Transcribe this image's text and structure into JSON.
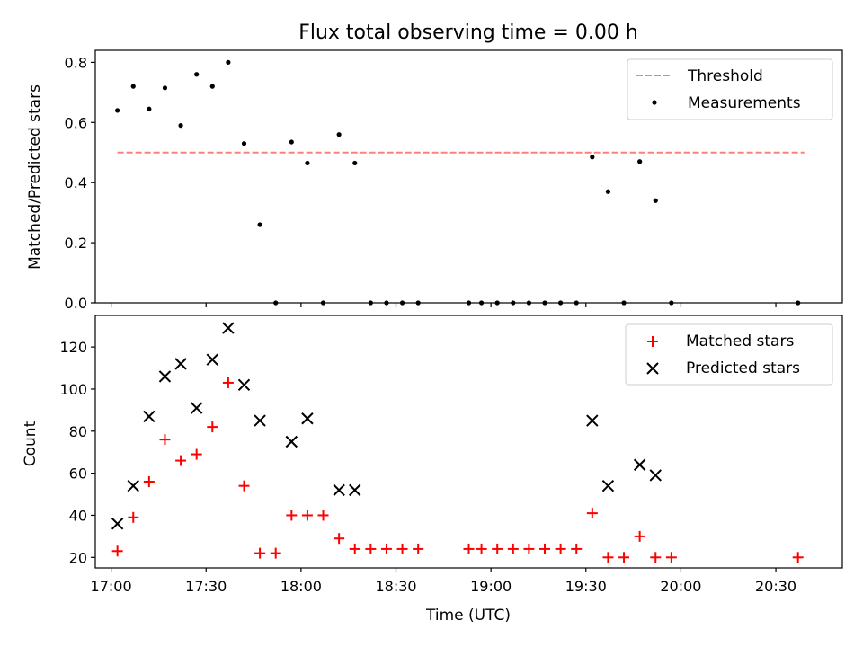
{
  "chart_data": [
    {
      "type": "scatter",
      "title": "Flux total observing time = 0.00 h",
      "xlabel": "",
      "ylabel": "Matched/Predicted stars",
      "ylim": [
        0.0,
        0.84
      ],
      "yticks": [
        "0.0",
        "0.2",
        "0.4",
        "0.6",
        "0.8"
      ],
      "xlim": [
        "16:55",
        "20:51"
      ],
      "legend_position": "top-right",
      "threshold": {
        "name": "Threshold",
        "value": 0.5,
        "x_range": [
          "17:02",
          "20:39"
        ],
        "color": "#ff7f7f",
        "style": "dashed"
      },
      "series": [
        {
          "name": "Measurements",
          "color": "#000000",
          "marker": "dot",
          "points": [
            [
              "17:02",
              0.64
            ],
            [
              "17:07",
              0.72
            ],
            [
              "17:12",
              0.645
            ],
            [
              "17:17",
              0.715
            ],
            [
              "17:22",
              0.59
            ],
            [
              "17:27",
              0.76
            ],
            [
              "17:32",
              0.72
            ],
            [
              "17:37",
              0.8
            ],
            [
              "17:42",
              0.53
            ],
            [
              "17:47",
              0.26
            ],
            [
              "17:52",
              0.0
            ],
            [
              "17:57",
              0.535
            ],
            [
              "18:02",
              0.465
            ],
            [
              "18:07",
              0.0
            ],
            [
              "18:12",
              0.56
            ],
            [
              "18:17",
              0.465
            ],
            [
              "18:22",
              0.0
            ],
            [
              "18:27",
              0.0
            ],
            [
              "18:32",
              0.0
            ],
            [
              "18:37",
              0.0
            ],
            [
              "18:53",
              0.0
            ],
            [
              "18:57",
              0.0
            ],
            [
              "19:02",
              0.0
            ],
            [
              "19:07",
              0.0
            ],
            [
              "19:12",
              0.0
            ],
            [
              "19:17",
              0.0
            ],
            [
              "19:22",
              0.0
            ],
            [
              "19:27",
              0.0
            ],
            [
              "19:32",
              0.485
            ],
            [
              "19:37",
              0.37
            ],
            [
              "19:42",
              0.0
            ],
            [
              "19:47",
              0.47
            ],
            [
              "19:52",
              0.34
            ],
            [
              "19:57",
              0.0
            ],
            [
              "20:37",
              0.0
            ]
          ]
        }
      ]
    },
    {
      "type": "scatter",
      "title": "",
      "xlabel": "Time (UTC)",
      "ylabel": "Count",
      "ylim": [
        15,
        135
      ],
      "yticks": [
        "20",
        "40",
        "60",
        "80",
        "100",
        "120"
      ],
      "xlim": [
        "16:55",
        "20:51"
      ],
      "xticks": [
        "17:00",
        "17:30",
        "18:00",
        "18:30",
        "19:00",
        "19:30",
        "20:00",
        "20:30"
      ],
      "legend_position": "top-right",
      "series": [
        {
          "name": "Matched stars",
          "color": "#ff0000",
          "marker": "plus",
          "points": [
            [
              "17:02",
              23
            ],
            [
              "17:07",
              39
            ],
            [
              "17:12",
              56
            ],
            [
              "17:17",
              76
            ],
            [
              "17:22",
              66
            ],
            [
              "17:27",
              69
            ],
            [
              "17:32",
              82
            ],
            [
              "17:37",
              103
            ],
            [
              "17:42",
              54
            ],
            [
              "17:47",
              22
            ],
            [
              "17:52",
              22
            ],
            [
              "17:57",
              40
            ],
            [
              "18:02",
              40
            ],
            [
              "18:07",
              40
            ],
            [
              "18:12",
              29
            ],
            [
              "18:17",
              24
            ],
            [
              "18:22",
              24
            ],
            [
              "18:27",
              24
            ],
            [
              "18:32",
              24
            ],
            [
              "18:37",
              24
            ],
            [
              "18:53",
              24
            ],
            [
              "18:57",
              24
            ],
            [
              "19:02",
              24
            ],
            [
              "19:07",
              24
            ],
            [
              "19:12",
              24
            ],
            [
              "19:17",
              24
            ],
            [
              "19:22",
              24
            ],
            [
              "19:27",
              24
            ],
            [
              "19:32",
              41
            ],
            [
              "19:37",
              20
            ],
            [
              "19:42",
              20
            ],
            [
              "19:47",
              30
            ],
            [
              "19:52",
              20
            ],
            [
              "19:57",
              20
            ],
            [
              "20:37",
              20
            ]
          ]
        },
        {
          "name": "Predicted stars",
          "color": "#000000",
          "marker": "cross",
          "points": [
            [
              "17:02",
              36
            ],
            [
              "17:07",
              54
            ],
            [
              "17:12",
              87
            ],
            [
              "17:17",
              106
            ],
            [
              "17:22",
              112
            ],
            [
              "17:27",
              91
            ],
            [
              "17:32",
              114
            ],
            [
              "17:37",
              129
            ],
            [
              "17:42",
              102
            ],
            [
              "17:47",
              85
            ],
            [
              "17:57",
              75
            ],
            [
              "18:02",
              86
            ],
            [
              "18:12",
              52
            ],
            [
              "18:17",
              52
            ],
            [
              "19:32",
              85
            ],
            [
              "19:37",
              54
            ],
            [
              "19:47",
              64
            ],
            [
              "19:52",
              59
            ]
          ]
        }
      ]
    }
  ]
}
